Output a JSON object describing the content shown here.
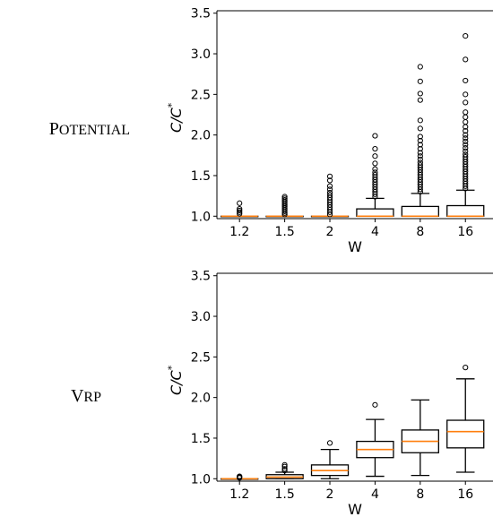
{
  "chart_data": [
    {
      "type": "box",
      "row_label": "Potential",
      "xlabel": "W",
      "ylabel": "C/C",
      "ylabel_superscript": "*",
      "ylim": [
        0.97,
        3.53
      ],
      "yticks": [
        1.0,
        1.5,
        2.0,
        2.5,
        3.0,
        3.5
      ],
      "ytick_labels": [
        "1.0",
        "1.5",
        "2.0",
        "2.5",
        "3.0",
        "3.5"
      ],
      "categories": [
        "1.2",
        "1.5",
        "2",
        "4",
        "8",
        "16"
      ],
      "boxes": [
        {
          "whislo": 1.0,
          "q1": 1.0,
          "med": 1.0,
          "q3": 1.0,
          "whishi": 1.0,
          "fliers": [
            1.03,
            1.05,
            1.07,
            1.09,
            1.16
          ]
        },
        {
          "whislo": 1.0,
          "q1": 1.0,
          "med": 1.0,
          "q3": 1.0,
          "whishi": 1.0,
          "fliers": [
            1.02,
            1.04,
            1.06,
            1.08,
            1.1,
            1.12,
            1.14,
            1.16,
            1.18,
            1.2,
            1.22,
            1.24
          ]
        },
        {
          "whislo": 1.0,
          "q1": 1.0,
          "med": 1.0,
          "q3": 1.0,
          "whishi": 1.0,
          "fliers": [
            1.02,
            1.05,
            1.08,
            1.11,
            1.14,
            1.17,
            1.2,
            1.23,
            1.26,
            1.29,
            1.33,
            1.37,
            1.44,
            1.49
          ]
        },
        {
          "whislo": 1.0,
          "q1": 1.0,
          "med": 1.0,
          "q3": 1.09,
          "whishi": 1.22,
          "fliers": [
            1.24,
            1.27,
            1.3,
            1.33,
            1.36,
            1.39,
            1.42,
            1.45,
            1.48,
            1.51,
            1.54,
            1.58,
            1.65,
            1.74,
            1.83,
            1.99
          ]
        },
        {
          "whislo": 1.0,
          "q1": 1.0,
          "med": 1.0,
          "q3": 1.12,
          "whishi": 1.28,
          "fliers": [
            1.3,
            1.33,
            1.36,
            1.39,
            1.42,
            1.45,
            1.48,
            1.51,
            1.54,
            1.57,
            1.6,
            1.63,
            1.66,
            1.7,
            1.74,
            1.78,
            1.83,
            1.88,
            1.93,
            1.98,
            2.08,
            2.18,
            2.43,
            2.51,
            2.66,
            2.84
          ]
        },
        {
          "whislo": 1.0,
          "q1": 1.0,
          "med": 1.0,
          "q3": 1.13,
          "whishi": 1.32,
          "fliers": [
            1.34,
            1.37,
            1.4,
            1.43,
            1.46,
            1.49,
            1.52,
            1.55,
            1.58,
            1.61,
            1.64,
            1.67,
            1.7,
            1.73,
            1.76,
            1.8,
            1.84,
            1.88,
            1.92,
            1.96,
            2.0,
            2.05,
            2.1,
            2.16,
            2.22,
            2.28,
            2.4,
            2.5,
            2.67,
            2.93,
            3.22
          ]
        }
      ]
    },
    {
      "type": "box",
      "row_label": "VRP",
      "xlabel": "W",
      "ylabel": "C/C",
      "ylabel_superscript": "*",
      "ylim": [
        0.97,
        3.53
      ],
      "yticks": [
        1.0,
        1.5,
        2.0,
        2.5,
        3.0,
        3.5
      ],
      "ytick_labels": [
        "1.0",
        "1.5",
        "2.0",
        "2.5",
        "3.0",
        "3.5"
      ],
      "categories": [
        "1.2",
        "1.5",
        "2",
        "4",
        "8",
        "16"
      ],
      "boxes": [
        {
          "whislo": 1.0,
          "q1": 1.0,
          "med": 1.0,
          "q3": 1.0,
          "whishi": 1.0,
          "fliers": [
            1.01,
            1.02,
            1.03
          ]
        },
        {
          "whislo": 1.0,
          "q1": 1.0,
          "med": 1.02,
          "q3": 1.05,
          "whishi": 1.08,
          "fliers": [
            1.1,
            1.12,
            1.15,
            1.17
          ]
        },
        {
          "whislo": 1.0,
          "q1": 1.04,
          "med": 1.1,
          "q3": 1.17,
          "whishi": 1.36,
          "fliers": [
            1.44
          ]
        },
        {
          "whislo": 1.03,
          "q1": 1.26,
          "med": 1.36,
          "q3": 1.46,
          "whishi": 1.73,
          "fliers": [
            1.91
          ]
        },
        {
          "whislo": 1.04,
          "q1": 1.32,
          "med": 1.46,
          "q3": 1.6,
          "whishi": 1.97,
          "fliers": []
        },
        {
          "whislo": 1.08,
          "q1": 1.38,
          "med": 1.58,
          "q3": 1.72,
          "whishi": 2.23,
          "fliers": [
            2.37
          ]
        }
      ]
    }
  ]
}
